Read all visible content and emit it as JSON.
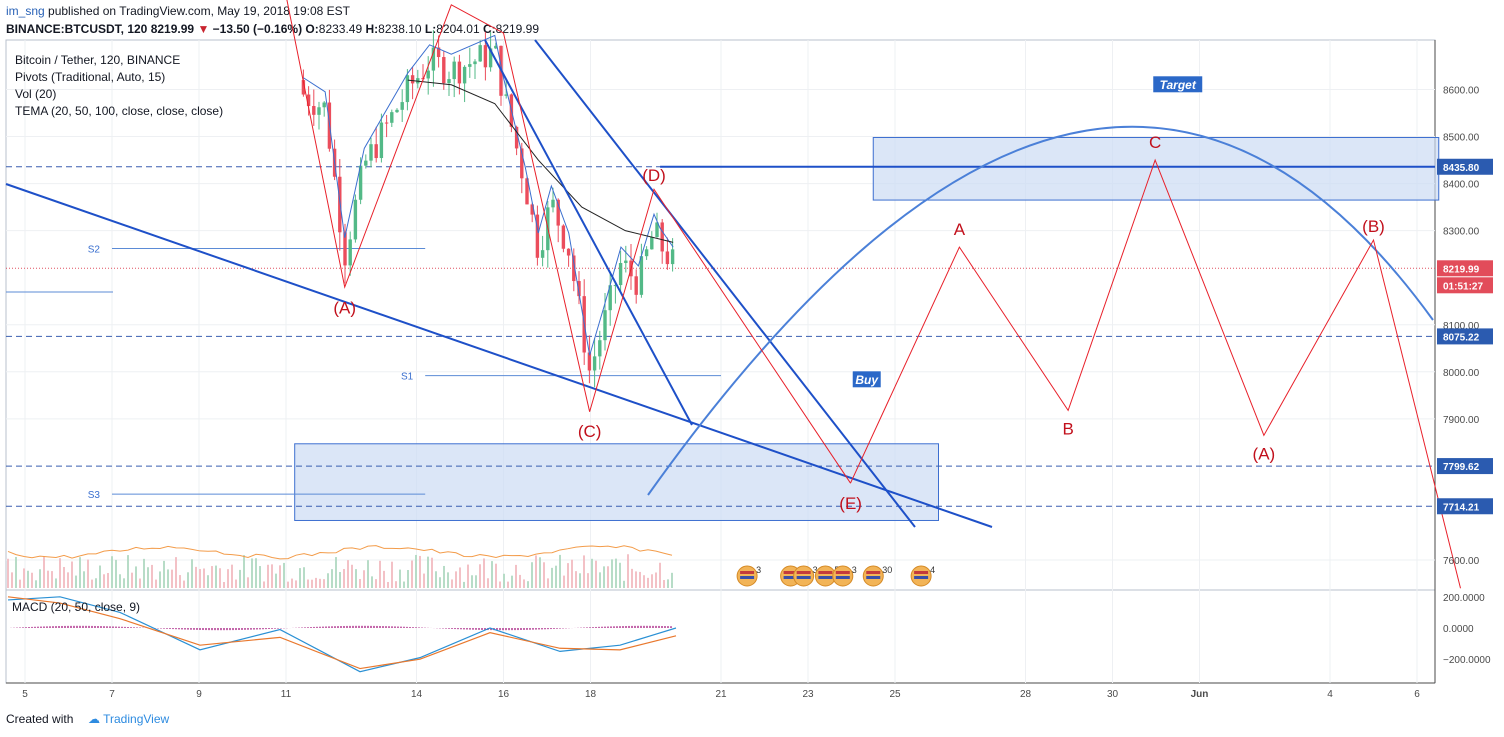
{
  "header": {
    "author": "im_sng",
    "published": "published on TradingView.com, May 19, 2018 19:08 EST",
    "symbol": "BINANCE:BTCUSDT, 120",
    "last": "8219.99",
    "change": "−13.50 (−0.16%)",
    "open_label": "O:",
    "open": "8233.49",
    "high_label": "H:",
    "high": "8238.10",
    "low_label": "L:",
    "low": "8204.01",
    "close_label": "C:",
    "close": "8219.99"
  },
  "legend": {
    "line1": "Bitcoin / Tether, 120, BINANCE",
    "line2": "Pivots (Traditional, Auto, 15)",
    "line3": "Vol (20)",
    "line4": "TEMA (20, 50, 100, close, close, close)"
  },
  "macd_label": "MACD (20, 50, close, 9)",
  "footer": {
    "created": "Created with",
    "brand": "TradingView"
  },
  "colors": {
    "up": "#53b987",
    "down": "#eb4d5c",
    "trend": "#1e50c8",
    "wave": "#e8202a",
    "wave_text": "#c2101c",
    "zone": "rgba(204,220,244,0.7)",
    "zone_border": "#3d6fd0",
    "arc": "#4b80d8"
  },
  "chart_data": {
    "type": "candlestick",
    "price_axis": {
      "ticks": [
        "8600.00",
        "8500.00",
        "8400.00",
        "8300.00",
        "8100.00",
        "8000.00",
        "7900.00",
        "7600.00"
      ],
      "ylim": [
        7540,
        8700
      ]
    },
    "price_labels": [
      {
        "text": "8435.80",
        "value": 8435.8
      },
      {
        "text": "8219.99",
        "value": 8219.99,
        "kind": "last"
      },
      {
        "text": "01:51:27",
        "kind": "countdown"
      },
      {
        "text": "8075.22",
        "value": 8075.22
      },
      {
        "text": "7799.62",
        "value": 7799.62
      },
      {
        "text": "7714.21",
        "value": 7714.21
      }
    ],
    "x_axis": {
      "labels": [
        "5",
        "7",
        "9",
        "11",
        "14",
        "16",
        "18",
        "21",
        "23",
        "25",
        "28",
        "30",
        "Jun",
        "4",
        "6"
      ],
      "day_index": [
        0,
        2,
        4,
        6,
        9,
        11,
        13,
        16,
        18,
        20,
        23,
        25,
        27,
        30,
        32
      ]
    },
    "pivots": [
      {
        "name": "S2",
        "value": 8262,
        "start_day": 2,
        "end_day": 9.2
      },
      {
        "name": "S1",
        "value": 7992,
        "start_day": 9.2,
        "end_day": 16
      },
      {
        "name": "S3",
        "value": 7740,
        "start_day": 2,
        "end_day": 9.2
      }
    ],
    "wave_labels_past": [
      {
        "text": "(A)",
        "day": 7.35,
        "price": 8183
      },
      {
        "text": "(C)",
        "day": 12.98,
        "price": 7917
      },
      {
        "text": "(D)",
        "day": 14.46,
        "price": 8388
      },
      {
        "text": "(E)",
        "day": 18.98,
        "price": 7764
      }
    ],
    "wave_projection": [
      {
        "day": 18.98,
        "price": 7764,
        "label": "(E)"
      },
      {
        "day": 21.48,
        "price": 8265,
        "label": "A"
      },
      {
        "day": 23.98,
        "price": 7918,
        "label": "B"
      },
      {
        "day": 25.98,
        "price": 8450,
        "label": "C"
      },
      {
        "day": 28.48,
        "price": 7865,
        "label": "(A)"
      },
      {
        "day": 31.0,
        "price": 8280,
        "label": "(B)"
      },
      {
        "day": 33.0,
        "price": 7540
      }
    ],
    "annotations": [
      {
        "text": "Target",
        "day": 26.5,
        "price": 8610
      },
      {
        "text": "Buy",
        "day": 19.35,
        "price": 7983
      }
    ],
    "zones": [
      {
        "day_start": 19.5,
        "day_end": 32.5,
        "price_top": 8498,
        "price_bottom": 8365
      },
      {
        "day_start": 6.2,
        "day_end": 21.0,
        "price_top": 7847,
        "price_bottom": 7684
      }
    ],
    "macd_axis": {
      "ticks": [
        "200.0000",
        "0.0000",
        "−200.0000"
      ],
      "ylim": [
        -300,
        240
      ]
    },
    "event_icons": [
      {
        "day": 16.6,
        "count": "3"
      },
      {
        "day": 17.6,
        "count": "2"
      },
      {
        "day": 17.9,
        "count": "3"
      },
      {
        "day": 18.4,
        "count": "5"
      },
      {
        "day": 18.8,
        "count": "3"
      },
      {
        "day": 19.5,
        "count": "30"
      },
      {
        "day": 20.6,
        "count": "4"
      }
    ]
  }
}
